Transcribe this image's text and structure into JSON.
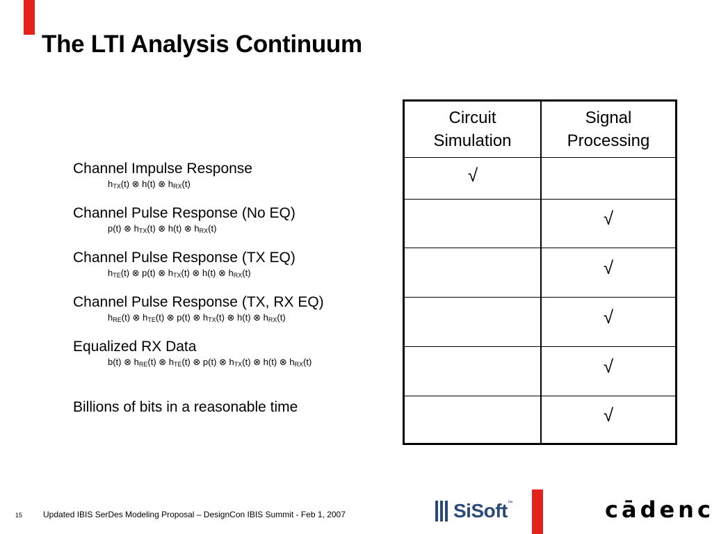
{
  "slide": {
    "title": "The LTI Analysis Continuum",
    "colors": {
      "accent": "#e2231a",
      "sisoft_blue": "#2b4a7a"
    }
  },
  "table": {
    "headers": {
      "circuit_line1": "Circuit",
      "circuit_line2": "Simulation",
      "signal_line1": "Signal",
      "signal_line2": "Processing"
    },
    "check_symbol": "√"
  },
  "rows": [
    {
      "label": "Channel Impulse Response",
      "formula_html": "h<sub>TX</sub>(t) ⊗ h(t) ⊗ h<sub>RX</sub>(t)",
      "circuit": true,
      "signal": false
    },
    {
      "label": "Channel Pulse Response (No EQ)",
      "formula_html": "p(t) ⊗ h<sub>TX</sub>(t) ⊗ h(t) ⊗ h<sub>RX</sub>(t)",
      "circuit": false,
      "signal": true
    },
    {
      "label": "Channel Pulse Response (TX EQ)",
      "formula_html": "h<sub>TE</sub>(t) ⊗ p(t) ⊗ h<sub>TX</sub>(t) ⊗ h(t) ⊗ h<sub>RX</sub>(t)",
      "circuit": false,
      "signal": true
    },
    {
      "label": "Channel Pulse Response (TX, RX EQ)",
      "formula_html": "h<sub>RE</sub>(t) ⊗ h<sub>TE</sub>(t) ⊗ p(t) ⊗ h<sub>TX</sub>(t) ⊗ h(t) ⊗ h<sub>RX</sub>(t)",
      "circuit": false,
      "signal": true
    },
    {
      "label": "Equalized RX Data",
      "formula_html": "b(t) ⊗ h<sub>RE</sub>(t) ⊗ h<sub>TE</sub>(t) ⊗ p(t) ⊗ h<sub>TX</sub>(t) ⊗ h(t) ⊗ h<sub>RX</sub>(t)",
      "circuit": false,
      "signal": true
    },
    {
      "label": "Billions of bits in a reasonable time",
      "formula_html": "",
      "circuit": false,
      "signal": true
    }
  ],
  "footer": {
    "page_number": "15",
    "text": "Updated IBIS SerDes Modeling Proposal – DesignCon IBIS Summit - Feb 1, 2007",
    "sisoft_logo": "SiSoft",
    "cadence_logo": "cādence",
    "trademark": "™"
  }
}
